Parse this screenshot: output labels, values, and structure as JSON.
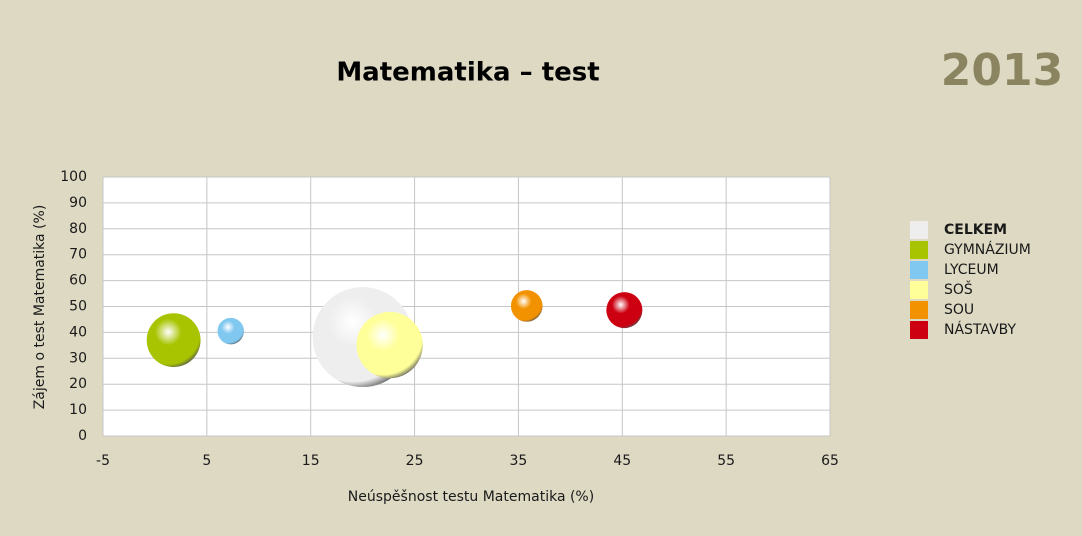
{
  "chart_data": {
    "type": "bubble",
    "title": "Matematika – test",
    "annotation": "2013",
    "x_label": "Neúspěšnost testu Matematika (%)",
    "y_label": "Zájem o test Matematika (%)",
    "xlim": [
      -5,
      65
    ],
    "xticks": [
      -5,
      5,
      15,
      25,
      35,
      45,
      55,
      65
    ],
    "ylim": [
      0,
      100
    ],
    "yticks": [
      0,
      10,
      20,
      30,
      40,
      50,
      60,
      70,
      80,
      90,
      100
    ],
    "grid": true,
    "legend": "right",
    "series": [
      {
        "name": "CELKEM",
        "color": "#eeeeee",
        "x": [
          20.0
        ],
        "values": [
          38.2
        ],
        "sizes": [
          100
        ]
      },
      {
        "name": "GYMNÁZIUM",
        "color": "#a8c400",
        "x": [
          1.8
        ],
        "values": [
          37
        ],
        "sizes": [
          29
        ]
      },
      {
        "name": "LYCEUM",
        "color": "#80c8f0",
        "x": [
          7.3
        ],
        "values": [
          40.5
        ],
        "sizes": [
          7
        ]
      },
      {
        "name": "SOŠ",
        "color": "#ffff99",
        "x": [
          22.6
        ],
        "values": [
          35.1
        ],
        "sizes": [
          44
        ]
      },
      {
        "name": "SOU",
        "color": "#f39200",
        "x": [
          35.8
        ],
        "values": [
          50.2
        ],
        "sizes": [
          10
        ]
      },
      {
        "name": "NÁSTAVBY",
        "color": "#cc0010",
        "x": [
          45.2
        ],
        "values": [
          48.6
        ],
        "sizes": [
          13
        ]
      }
    ]
  }
}
